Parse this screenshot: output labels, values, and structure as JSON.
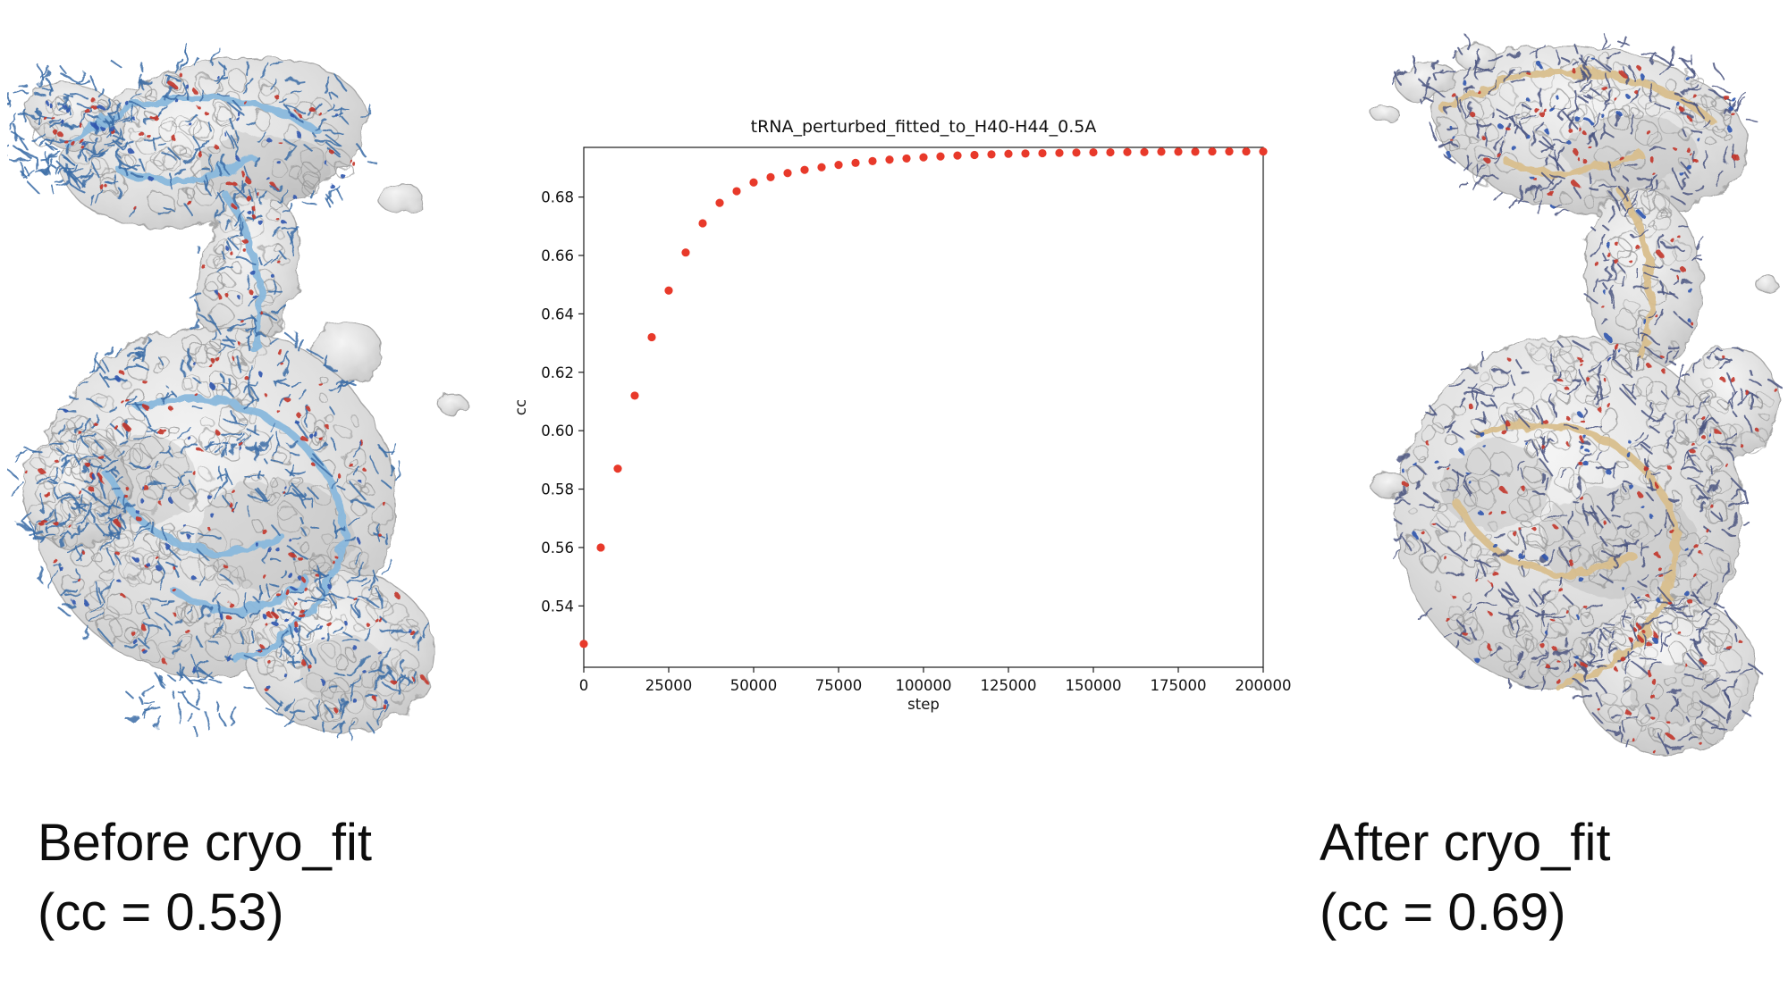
{
  "figure": {
    "before_caption": {
      "line1": "Before cryo_fit",
      "line2": "(cc = 0.53)"
    },
    "after_caption": {
      "line1": "After cryo_fit",
      "line2": "(cc = 0.69)"
    }
  },
  "chart_data": {
    "type": "scatter",
    "title": "tRNA_perturbed_fitted_to_H40-H44_0.5A",
    "xlabel": "step",
    "ylabel": "cc",
    "xlim": [
      0,
      200000
    ],
    "ylim": [
      0.519,
      0.697
    ],
    "xticks": [
      0,
      25000,
      50000,
      75000,
      100000,
      125000,
      150000,
      175000,
      200000
    ],
    "yticks": [
      0.54,
      0.56,
      0.58,
      0.6,
      0.62,
      0.64,
      0.66,
      0.68
    ],
    "grid": false,
    "legend_position": "none",
    "marker_color": "#e8392a",
    "series": [
      {
        "name": "cc",
        "x": [
          0,
          5000,
          10000,
          15000,
          20000,
          25000,
          30000,
          35000,
          40000,
          45000,
          50000,
          55000,
          60000,
          65000,
          70000,
          75000,
          80000,
          85000,
          90000,
          95000,
          100000,
          105000,
          110000,
          115000,
          120000,
          125000,
          130000,
          135000,
          140000,
          145000,
          150000,
          155000,
          160000,
          165000,
          170000,
          175000,
          180000,
          185000,
          190000,
          195000,
          200000
        ],
        "y": [
          0.527,
          0.56,
          0.587,
          0.612,
          0.632,
          0.648,
          0.661,
          0.671,
          0.678,
          0.682,
          0.685,
          0.6868,
          0.6882,
          0.6893,
          0.6902,
          0.691,
          0.6917,
          0.6923,
          0.6928,
          0.6932,
          0.6936,
          0.6939,
          0.6942,
          0.6944,
          0.6946,
          0.6948,
          0.6949,
          0.695,
          0.6951,
          0.6952,
          0.6953,
          0.6953,
          0.6954,
          0.6954,
          0.6955,
          0.6955,
          0.6955,
          0.6956,
          0.6956,
          0.6956,
          0.6956
        ]
      }
    ]
  },
  "molecules": {
    "before": {
      "surface_color": "#dcdcdc",
      "ribbon_color": "#8ab9dd",
      "stick_color": "#3a6ca6",
      "oxygen_color": "#c23429",
      "nitrogen_color": "#2f55ae"
    },
    "after": {
      "surface_color": "#dcdcdc",
      "ribbon_color": "#d9bf8e",
      "stick_color": "#4a5480",
      "oxygen_color": "#c23429",
      "nitrogen_color": "#2f55ae"
    }
  }
}
